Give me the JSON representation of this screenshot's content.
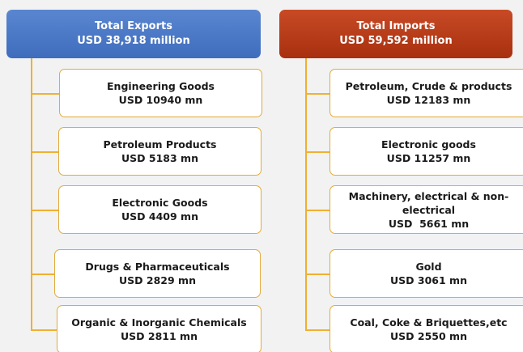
{
  "exports": {
    "title": "Total Exports",
    "value": "USD 38,918 million",
    "items": [
      {
        "label": "Engineering Goods",
        "value": "USD 10940 mn"
      },
      {
        "label": "Petroleum Products",
        "value": "USD 5183 mn"
      },
      {
        "label": "Electronic Goods",
        "value": "USD 4409 mn"
      },
      {
        "label": "Drugs & Pharmaceuticals",
        "value": "USD 2829 mn"
      },
      {
        "label": "Organic & Inorganic Chemicals",
        "value": "USD 2811 mn"
      }
    ]
  },
  "imports": {
    "title": "Total Imports",
    "value": "USD 59,592 million",
    "items": [
      {
        "label": "Petroleum, Crude & products",
        "value": "USD 12183 mn"
      },
      {
        "label": "Electronic goods",
        "value": "USD 11257 mn"
      },
      {
        "label": "Machinery, electrical & non-electrical",
        "value": "USD  5661 mn"
      },
      {
        "label": "Gold",
        "value": "USD 3061 mn"
      },
      {
        "label": "Coal, Coke & Briquettes,etc",
        "value": "USD 2550 mn"
      }
    ]
  }
}
